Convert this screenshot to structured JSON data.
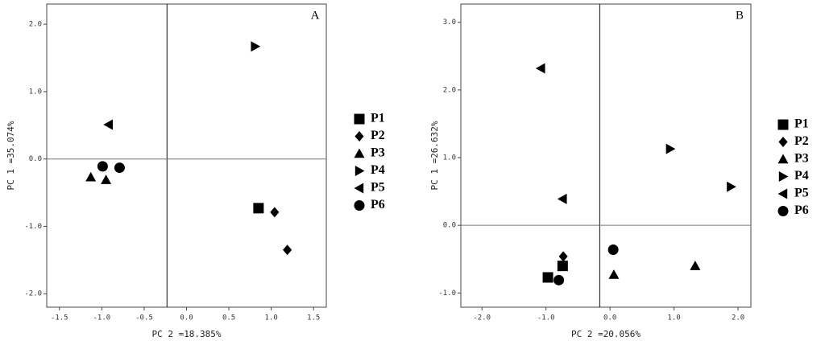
{
  "chart_data": [
    {
      "type": "scatter",
      "panel_label": "A",
      "x_label": "PC 2 =18.385%",
      "y_label": "PC 1 =35.074%",
      "xlim": [
        -1.65,
        1.65
      ],
      "ylim": [
        -2.2,
        2.3
      ],
      "xticks": [
        {
          "value": -1.5,
          "label": "-1.5"
        },
        {
          "value": -1,
          "label": "-1.0"
        },
        {
          "value": -0.5,
          "label": "-0.5"
        },
        {
          "value": 0,
          "label": "0.0"
        },
        {
          "value": 0.5,
          "label": "0.5"
        },
        {
          "value": 1,
          "label": "1.0"
        },
        {
          "value": 1.5,
          "label": "1.5"
        }
      ],
      "yticks": [
        {
          "value": -2,
          "label": "-2.0"
        },
        {
          "value": -1,
          "label": "-1.0"
        },
        {
          "value": 0,
          "label": "0.0"
        },
        {
          "value": 1,
          "label": "1.0"
        },
        {
          "value": 2,
          "label": "2.0"
        }
      ],
      "refline_x": -0.23,
      "refline_y": 0,
      "series": [
        {
          "name": "P1",
          "marker": "square",
          "color": "#000000",
          "x": [
            0.85
          ],
          "y": [
            -0.73
          ]
        },
        {
          "name": "P2",
          "marker": "diamond",
          "color": "#000000",
          "x": [
            1.04,
            1.19
          ],
          "y": [
            -0.79,
            -1.35
          ]
        },
        {
          "name": "P3",
          "marker": "triangle-up",
          "color": "#000000",
          "x": [
            -1.13,
            -0.95
          ],
          "y": [
            -0.27,
            -0.31
          ]
        },
        {
          "name": "P4",
          "marker": "triangle-right",
          "color": "#000000",
          "x": [
            0.81
          ],
          "y": [
            1.67
          ]
        },
        {
          "name": "P5",
          "marker": "triangle-left",
          "color": "#000000",
          "x": [
            -0.92
          ],
          "y": [
            0.51
          ]
        },
        {
          "name": "P6",
          "marker": "circle",
          "color": "#000000",
          "x": [
            -0.99,
            -0.79
          ],
          "y": [
            -0.11,
            -0.13
          ]
        }
      ]
    },
    {
      "type": "scatter",
      "panel_label": "B",
      "x_label": "PC 2 =20.056%",
      "y_label": "PC 1 =26.632%",
      "xlim": [
        -2.33,
        2.2
      ],
      "ylim": [
        -1.21,
        3.27
      ],
      "xticks": [
        {
          "value": -2,
          "label": "-2.0"
        },
        {
          "value": -1,
          "label": "-1.0"
        },
        {
          "value": 0,
          "label": "0.0"
        },
        {
          "value": 1,
          "label": "1.0"
        },
        {
          "value": 2,
          "label": "2.0"
        }
      ],
      "yticks": [
        {
          "value": -1,
          "label": "-1.0"
        },
        {
          "value": 0,
          "label": "0.0"
        },
        {
          "value": 1,
          "label": "1.0"
        },
        {
          "value": 2,
          "label": "2.0"
        },
        {
          "value": 3,
          "label": "3.0"
        }
      ],
      "refline_x": -0.16,
      "refline_y": 0,
      "series": [
        {
          "name": "P1",
          "marker": "square",
          "color": "#000000",
          "x": [
            -0.97,
            -0.74
          ],
          "y": [
            -0.77,
            -0.6
          ]
        },
        {
          "name": "P2",
          "marker": "diamond",
          "color": "#000000",
          "x": [
            -0.73
          ],
          "y": [
            -0.46
          ]
        },
        {
          "name": "P3",
          "marker": "triangle-up",
          "color": "#000000",
          "x": [
            0.06,
            1.33
          ],
          "y": [
            -0.73,
            -0.6
          ]
        },
        {
          "name": "P4",
          "marker": "triangle-right",
          "color": "#000000",
          "x": [
            0.94,
            1.89
          ],
          "y": [
            1.13,
            0.57
          ]
        },
        {
          "name": "P5",
          "marker": "triangle-left",
          "color": "#000000",
          "x": [
            -1.08,
            -0.74
          ],
          "y": [
            2.32,
            0.39
          ]
        },
        {
          "name": "P6",
          "marker": "circle",
          "color": "#000000",
          "x": [
            -0.8,
            0.05
          ],
          "y": [
            -0.81,
            -0.36
          ]
        }
      ]
    }
  ]
}
